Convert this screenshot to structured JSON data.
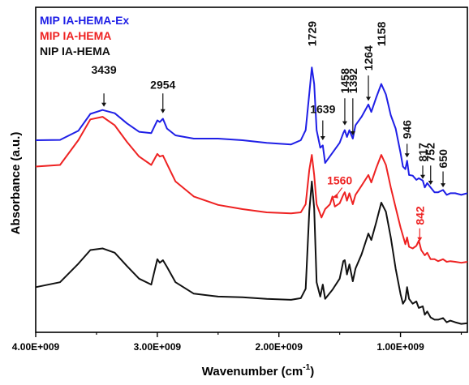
{
  "chart_data": {
    "type": "line",
    "title": "",
    "xlabel": "Wavenumber (cm",
    "xlabel_sup": "-1",
    "xlabel_close": ")",
    "ylabel": "Absorbance (a.u.)",
    "x_reversed": true,
    "xlim": [
      4000,
      450
    ],
    "x_ticks": [
      {
        "value": 4000,
        "label": "4.00E+009"
      },
      {
        "value": 3000,
        "label": "3.00E+009"
      },
      {
        "value": 2000,
        "label": "2.00E+009"
      },
      {
        "value": 1000,
        "label": "1.00E+009"
      }
    ],
    "ylim": [
      0,
      100
    ],
    "legend_position": "top-left",
    "series": [
      {
        "name": "MIP IA-HEMA-Ex",
        "color": "#1f1fe6",
        "points": [
          [
            4000,
            59.1
          ],
          [
            3800,
            59.2
          ],
          [
            3650,
            62
          ],
          [
            3550,
            67.2
          ],
          [
            3450,
            68.4
          ],
          [
            3350,
            67.4
          ],
          [
            3250,
            64.3
          ],
          [
            3150,
            61.7
          ],
          [
            3050,
            61.3
          ],
          [
            3000,
            65.2
          ],
          [
            2980,
            64.7
          ],
          [
            2954,
            65.7
          ],
          [
            2920,
            62.7
          ],
          [
            2850,
            60.6
          ],
          [
            2700,
            59.6
          ],
          [
            2500,
            59.6
          ],
          [
            2300,
            59.1
          ],
          [
            2100,
            58.3
          ],
          [
            1900,
            57.8
          ],
          [
            1820,
            59.1
          ],
          [
            1780,
            62.2
          ],
          [
            1750,
            73.5
          ],
          [
            1729,
            81.5
          ],
          [
            1710,
            76.4
          ],
          [
            1690,
            62.2
          ],
          [
            1660,
            56.8
          ],
          [
            1639,
            57.5
          ],
          [
            1620,
            52.1
          ],
          [
            1560,
            55.2
          ],
          [
            1500,
            58.3
          ],
          [
            1470,
            61.3
          ],
          [
            1458,
            62.2
          ],
          [
            1440,
            60.1
          ],
          [
            1420,
            62.2
          ],
          [
            1392,
            59.6
          ],
          [
            1370,
            63.7
          ],
          [
            1320,
            66.3
          ],
          [
            1264,
            70.1
          ],
          [
            1240,
            67.8
          ],
          [
            1200,
            72.2
          ],
          [
            1158,
            76.4
          ],
          [
            1120,
            73.2
          ],
          [
            1080,
            66.8
          ],
          [
            1040,
            62.7
          ],
          [
            1000,
            55.2
          ],
          [
            980,
            51
          ],
          [
            960,
            50.2
          ],
          [
            946,
            52.8
          ],
          [
            930,
            48.4
          ],
          [
            900,
            48.2
          ],
          [
            870,
            46.9
          ],
          [
            850,
            47.4
          ],
          [
            817,
            46.7
          ],
          [
            800,
            44.6
          ],
          [
            780,
            45.9
          ],
          [
            752,
            44.6
          ],
          [
            720,
            43.1
          ],
          [
            690,
            43.1
          ],
          [
            650,
            43.8
          ],
          [
            620,
            42.3
          ],
          [
            590,
            42.8
          ],
          [
            550,
            42.8
          ],
          [
            500,
            42.3
          ],
          [
            450,
            42.8
          ]
        ]
      },
      {
        "name": "MIP IA-HEMA",
        "color": "#ee2222",
        "points": [
          [
            4000,
            51
          ],
          [
            3800,
            51.5
          ],
          [
            3650,
            59.1
          ],
          [
            3550,
            65.5
          ],
          [
            3450,
            66.3
          ],
          [
            3350,
            63.7
          ],
          [
            3250,
            58.6
          ],
          [
            3150,
            54.1
          ],
          [
            3050,
            51.5
          ],
          [
            3000,
            54.9
          ],
          [
            2980,
            54.1
          ],
          [
            2954,
            54.4
          ],
          [
            2920,
            51.8
          ],
          [
            2850,
            46.4
          ],
          [
            2700,
            41.8
          ],
          [
            2500,
            39.2
          ],
          [
            2300,
            37.9
          ],
          [
            2100,
            36.9
          ],
          [
            1900,
            36.6
          ],
          [
            1820,
            36.9
          ],
          [
            1780,
            39.4
          ],
          [
            1750,
            50
          ],
          [
            1729,
            54.6
          ],
          [
            1710,
            48.4
          ],
          [
            1690,
            39.4
          ],
          [
            1650,
            35.3
          ],
          [
            1620,
            37.9
          ],
          [
            1580,
            39.4
          ],
          [
            1560,
            41.8
          ],
          [
            1540,
            38.7
          ],
          [
            1500,
            39.7
          ],
          [
            1470,
            42.3
          ],
          [
            1458,
            43.1
          ],
          [
            1440,
            40.5
          ],
          [
            1420,
            42.8
          ],
          [
            1392,
            39.4
          ],
          [
            1370,
            42.3
          ],
          [
            1320,
            45.1
          ],
          [
            1264,
            48.4
          ],
          [
            1240,
            46.1
          ],
          [
            1200,
            50.5
          ],
          [
            1158,
            54.6
          ],
          [
            1120,
            51.5
          ],
          [
            1080,
            44.6
          ],
          [
            1040,
            38.4
          ],
          [
            1000,
            32.3
          ],
          [
            980,
            29.7
          ],
          [
            960,
            27.1
          ],
          [
            946,
            29.2
          ],
          [
            930,
            26.3
          ],
          [
            900,
            25.8
          ],
          [
            870,
            26.6
          ],
          [
            850,
            28.2
          ],
          [
            842,
            27.1
          ],
          [
            830,
            25.3
          ],
          [
            800,
            23.7
          ],
          [
            780,
            24.5
          ],
          [
            752,
            22.5
          ],
          [
            720,
            22.5
          ],
          [
            690,
            21.9
          ],
          [
            650,
            22.5
          ],
          [
            620,
            21.7
          ],
          [
            590,
            21.9
          ],
          [
            550,
            21.7
          ],
          [
            500,
            21.4
          ],
          [
            450,
            21.7
          ]
        ]
      },
      {
        "name": "NIP IA-HEMA",
        "color": "#111111",
        "points": [
          [
            4000,
            13.9
          ],
          [
            3800,
            15.4
          ],
          [
            3650,
            21.1
          ],
          [
            3550,
            25.3
          ],
          [
            3450,
            25.8
          ],
          [
            3350,
            24.5
          ],
          [
            3250,
            20.4
          ],
          [
            3150,
            16.5
          ],
          [
            3050,
            14.7
          ],
          [
            3000,
            22.5
          ],
          [
            2980,
            21.4
          ],
          [
            2954,
            22.2
          ],
          [
            2920,
            20.1
          ],
          [
            2850,
            15.4
          ],
          [
            2700,
            11.9
          ],
          [
            2500,
            11
          ],
          [
            2300,
            10.8
          ],
          [
            2100,
            10.3
          ],
          [
            1900,
            10
          ],
          [
            1820,
            10.5
          ],
          [
            1780,
            13.4
          ],
          [
            1750,
            37.4
          ],
          [
            1729,
            46.4
          ],
          [
            1710,
            38.1
          ],
          [
            1690,
            15.4
          ],
          [
            1660,
            11
          ],
          [
            1639,
            14.7
          ],
          [
            1620,
            10.3
          ],
          [
            1560,
            13.1
          ],
          [
            1500,
            16.5
          ],
          [
            1470,
            21.9
          ],
          [
            1458,
            22.2
          ],
          [
            1440,
            17.8
          ],
          [
            1420,
            20.9
          ],
          [
            1392,
            15.7
          ],
          [
            1370,
            19.6
          ],
          [
            1320,
            24
          ],
          [
            1264,
            30.4
          ],
          [
            1240,
            28.4
          ],
          [
            1200,
            33.8
          ],
          [
            1158,
            39.9
          ],
          [
            1120,
            37.1
          ],
          [
            1080,
            29.2
          ],
          [
            1040,
            19.6
          ],
          [
            1000,
            11.8
          ],
          [
            980,
            8.8
          ],
          [
            960,
            10
          ],
          [
            946,
            13.9
          ],
          [
            930,
            10.3
          ],
          [
            900,
            8.8
          ],
          [
            870,
            9.5
          ],
          [
            850,
            7.5
          ],
          [
            817,
            8
          ],
          [
            800,
            5.4
          ],
          [
            780,
            6.4
          ],
          [
            752,
            4.6
          ],
          [
            720,
            3.9
          ],
          [
            690,
            3.9
          ],
          [
            650,
            4.4
          ],
          [
            620,
            3.1
          ],
          [
            590,
            3.6
          ],
          [
            550,
            3.1
          ],
          [
            500,
            2.6
          ],
          [
            450,
            2.8
          ]
        ]
      }
    ],
    "annotations": [
      {
        "label": "3439",
        "x": 3439,
        "color": "#111111",
        "arrow_from": 73.5,
        "arrow_to": 69.4
      },
      {
        "label": "2954",
        "x": 2954,
        "color": "#111111",
        "arrow_from": 73.5,
        "arrow_to": 67.4
      },
      {
        "label": "1729",
        "x": 1729,
        "color": "#111111",
        "vertical": true
      },
      {
        "label": "1639",
        "x": 1639,
        "color": "#111111",
        "arrow_from": 65.2,
        "arrow_to": 59.1
      },
      {
        "label": "1458",
        "x": 1458,
        "color": "#111111",
        "vertical": true,
        "arrow_from": 72,
        "arrow_to": 63.7
      },
      {
        "label": "1392",
        "x": 1392,
        "color": "#111111",
        "vertical": true,
        "arrow_from": 72,
        "arrow_to": 60.6
      },
      {
        "label": "1264",
        "x": 1264,
        "color": "#111111",
        "vertical": true,
        "arrow_from": 79,
        "arrow_to": 71.2
      },
      {
        "label": "1158",
        "x": 1158,
        "color": "#111111",
        "vertical": true
      },
      {
        "label": "946",
        "x": 946,
        "color": "#111111",
        "vertical": true,
        "arrow_from": 58,
        "arrow_to": 53.8
      },
      {
        "label": "817",
        "x": 817,
        "color": "#111111",
        "vertical": true,
        "arrow_from": 51.3,
        "arrow_to": 47.2
      },
      {
        "label": "752",
        "x": 752,
        "color": "#111111",
        "vertical": true,
        "arrow_from": 51.3,
        "arrow_to": 45.4
      },
      {
        "label": "650",
        "x": 650,
        "color": "#111111",
        "vertical": true,
        "arrow_from": 49.5,
        "arrow_to": 44.6
      },
      {
        "label": "1560",
        "x": 1560,
        "color": "#ee2222"
      },
      {
        "label": "842",
        "x": 842,
        "color": "#ee2222",
        "vertical": true,
        "arrow_from": 32,
        "arrow_to": 28
      }
    ]
  }
}
